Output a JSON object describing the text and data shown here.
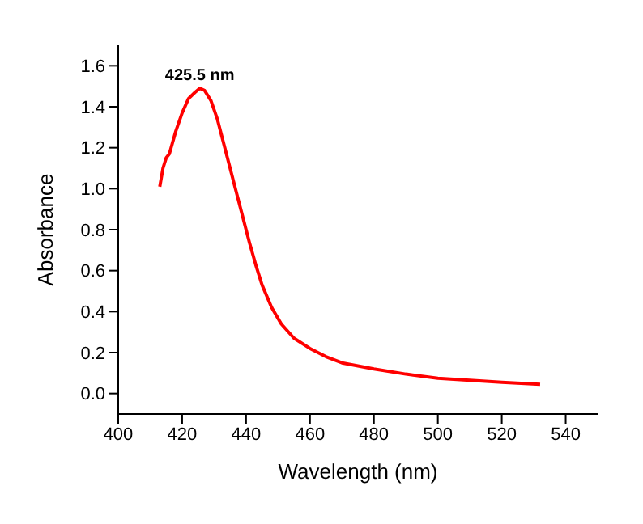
{
  "chart_data": {
    "type": "line",
    "xlabel": "Wavelength (nm)",
    "ylabel": "Absorbance",
    "xlim": [
      400,
      550
    ],
    "xticks": [
      400,
      420,
      440,
      460,
      480,
      500,
      520,
      540
    ],
    "ylim": [
      -0.1,
      1.7
    ],
    "yticks": [
      {
        "value": 0,
        "label": "0.0"
      },
      {
        "value": 0.2,
        "label": "0.2"
      },
      {
        "value": 0.4,
        "label": "0.4"
      },
      {
        "value": 0.6,
        "label": "0.6"
      },
      {
        "value": 0.8,
        "label": "0.8"
      },
      {
        "value": 1,
        "label": "1.0"
      },
      {
        "value": 1.2,
        "label": "1.2"
      },
      {
        "value": 1.4,
        "label": "1.4"
      },
      {
        "value": 1.6,
        "label": "1.6"
      }
    ],
    "grid": false,
    "legend": false,
    "marker": "none",
    "line_style": "solid",
    "annotations": [
      {
        "text": "425.5 nm",
        "x": 425.5,
        "y": 1.49
      }
    ],
    "series": [
      {
        "color": "#ff0000",
        "x": [
          413,
          414,
          415,
          416,
          418,
          420,
          422,
          424,
          425.5,
          427,
          429,
          431,
          433,
          435,
          437,
          439,
          441,
          443,
          445,
          448,
          451,
          455,
          460,
          465,
          470,
          480,
          490,
          500,
          510,
          520,
          532
        ],
        "values": [
          1.01,
          1.1,
          1.15,
          1.17,
          1.28,
          1.37,
          1.44,
          1.47,
          1.49,
          1.48,
          1.43,
          1.34,
          1.22,
          1.1,
          0.98,
          0.86,
          0.74,
          0.63,
          0.53,
          0.42,
          0.34,
          0.27,
          0.22,
          0.18,
          0.15,
          0.12,
          0.095,
          0.075,
          0.065,
          0.055,
          0.045
        ]
      }
    ]
  }
}
